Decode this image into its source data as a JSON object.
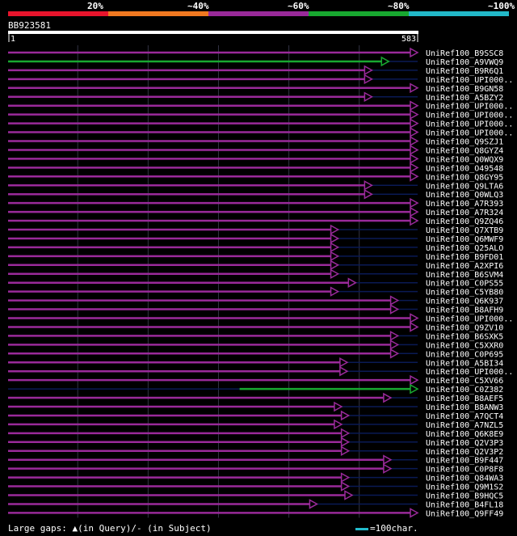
{
  "chart_data": {
    "type": "alignment-overview",
    "query": {
      "id": "BB923581",
      "start": 1,
      "end": 583
    },
    "color_scale": {
      "labels": [
        "20%",
        "~40%",
        "~60%",
        "~80%",
        "~100%"
      ],
      "colors": [
        "#e8142c",
        "#f07820",
        "#9a2a9a",
        "#18a830",
        "#22b8c8"
      ]
    },
    "hits": [
      {
        "label": "UniRef100_B9SSC8",
        "start": 1,
        "end": 583,
        "identity_class": "~60%"
      },
      {
        "label": "UniRef100_A9VWQ9",
        "start": 1,
        "end": 542,
        "identity_class": "~80%"
      },
      {
        "label": "UniRef100_B9R6Q1",
        "start": 1,
        "end": 518,
        "identity_class": "~60%"
      },
      {
        "label": "UniRef100_UPI000..",
        "start": 1,
        "end": 518,
        "identity_class": "~60%"
      },
      {
        "label": "UniRef100_B9GN58",
        "start": 1,
        "end": 583,
        "identity_class": "~60%"
      },
      {
        "label": "UniRef100_A5BZY2",
        "start": 1,
        "end": 518,
        "identity_class": "~60%"
      },
      {
        "label": "UniRef100_UPI000..",
        "start": 1,
        "end": 583,
        "identity_class": "~60%"
      },
      {
        "label": "UniRef100_UPI000..",
        "start": 1,
        "end": 583,
        "identity_class": "~60%"
      },
      {
        "label": "UniRef100_UPI000..",
        "start": 1,
        "end": 583,
        "identity_class": "~60%"
      },
      {
        "label": "UniRef100_UPI000..",
        "start": 1,
        "end": 583,
        "identity_class": "~60%"
      },
      {
        "label": "UniRef100_Q9SZJ1",
        "start": 1,
        "end": 583,
        "identity_class": "~60%"
      },
      {
        "label": "UniRef100_Q8GYZ4",
        "start": 1,
        "end": 583,
        "identity_class": "~60%"
      },
      {
        "label": "UniRef100_Q0WQX9",
        "start": 1,
        "end": 583,
        "identity_class": "~60%"
      },
      {
        "label": "UniRef100_O49548",
        "start": 1,
        "end": 583,
        "identity_class": "~60%"
      },
      {
        "label": "UniRef100_Q8GY95",
        "start": 1,
        "end": 583,
        "identity_class": "~60%"
      },
      {
        "label": "UniRef100_Q9LTA6",
        "start": 1,
        "end": 518,
        "identity_class": "~60%"
      },
      {
        "label": "UniRef100_Q0WLQ3",
        "start": 1,
        "end": 518,
        "identity_class": "~60%"
      },
      {
        "label": "UniRef100_A7R393",
        "start": 1,
        "end": 583,
        "identity_class": "~60%"
      },
      {
        "label": "UniRef100_A7R324",
        "start": 1,
        "end": 583,
        "identity_class": "~60%"
      },
      {
        "label": "UniRef100_Q9ZQ46",
        "start": 1,
        "end": 583,
        "identity_class": "~60%"
      },
      {
        "label": "UniRef100_Q7XTB9",
        "start": 1,
        "end": 470,
        "identity_class": "~60%"
      },
      {
        "label": "UniRef100_Q6MWF9",
        "start": 1,
        "end": 470,
        "identity_class": "~60%"
      },
      {
        "label": "UniRef100_Q25ALO",
        "start": 1,
        "end": 470,
        "identity_class": "~60%"
      },
      {
        "label": "UniRef100_B9FD01",
        "start": 1,
        "end": 470,
        "identity_class": "~60%"
      },
      {
        "label": "UniRef100_A2XPI6",
        "start": 1,
        "end": 470,
        "identity_class": "~60%"
      },
      {
        "label": "UniRef100_B6SVM4",
        "start": 1,
        "end": 470,
        "identity_class": "~60%"
      },
      {
        "label": "UniRef100_C0PS55",
        "start": 1,
        "end": 495,
        "identity_class": "~60%"
      },
      {
        "label": "UniRef100_C5YB80",
        "start": 1,
        "end": 470,
        "identity_class": "~60%"
      },
      {
        "label": "UniRef100_Q6K937",
        "start": 1,
        "end": 555,
        "identity_class": "~60%"
      },
      {
        "label": "UniRef100_B8AFH9",
        "start": 1,
        "end": 555,
        "identity_class": "~60%"
      },
      {
        "label": "UniRef100_UPI000..",
        "start": 1,
        "end": 583,
        "identity_class": "~60%"
      },
      {
        "label": "UniRef100_Q9ZV10",
        "start": 1,
        "end": 583,
        "identity_class": "~60%"
      },
      {
        "label": "UniRef100_B6SXK5",
        "start": 1,
        "end": 555,
        "identity_class": "~60%"
      },
      {
        "label": "UniRef100_C5XXR0",
        "start": 1,
        "end": 555,
        "identity_class": "~60%"
      },
      {
        "label": "UniRef100_C0P695",
        "start": 1,
        "end": 555,
        "identity_class": "~60%"
      },
      {
        "label": "UniRef100_A5BI34",
        "start": 1,
        "end": 483,
        "identity_class": "~60%"
      },
      {
        "label": "UniRef100_UPI000..",
        "start": 1,
        "end": 483,
        "identity_class": "~60%"
      },
      {
        "label": "UniRef100_C5XV66",
        "start": 1,
        "end": 583,
        "identity_class": "~60%"
      },
      {
        "label": "UniRef100_C0Z382",
        "start": 330,
        "end": 583,
        "identity_class": "~80%"
      },
      {
        "label": "UniRef100_B8AEF5",
        "start": 1,
        "end": 545,
        "identity_class": "~60%"
      },
      {
        "label": "UniRef100_B8ANW3",
        "start": 1,
        "end": 475,
        "identity_class": "~60%"
      },
      {
        "label": "UniRef100_A7QCT4",
        "start": 1,
        "end": 485,
        "identity_class": "~60%"
      },
      {
        "label": "UniRef100_A7NZL5",
        "start": 1,
        "end": 475,
        "identity_class": "~60%"
      },
      {
        "label": "UniRef100_Q6K8E9",
        "start": 1,
        "end": 485,
        "identity_class": "~60%"
      },
      {
        "label": "UniRef100_Q2V3P3",
        "start": 1,
        "end": 485,
        "identity_class": "~60%"
      },
      {
        "label": "UniRef100_Q2V3P2",
        "start": 1,
        "end": 485,
        "identity_class": "~60%"
      },
      {
        "label": "UniRef100_B9F447",
        "start": 1,
        "end": 545,
        "identity_class": "~60%"
      },
      {
        "label": "UniRef100_C0P8F8",
        "start": 1,
        "end": 545,
        "identity_class": "~60%"
      },
      {
        "label": "UniRef100_Q84WA3",
        "start": 1,
        "end": 485,
        "identity_class": "~60%"
      },
      {
        "label": "UniRef100_Q9M1S2",
        "start": 1,
        "end": 485,
        "identity_class": "~60%"
      },
      {
        "label": "UniRef100_B9HQC5",
        "start": 1,
        "end": 490,
        "identity_class": "~60%"
      },
      {
        "label": "UniRef100_B4FL18",
        "start": 1,
        "end": 440,
        "identity_class": "~60%"
      },
      {
        "label": "UniRef100_Q9FF49",
        "start": 1,
        "end": 583,
        "identity_class": "~60%"
      }
    ],
    "legend": "Large gaps: ▲(in Query)/- (in Subject)",
    "scale_note": "=100char."
  }
}
